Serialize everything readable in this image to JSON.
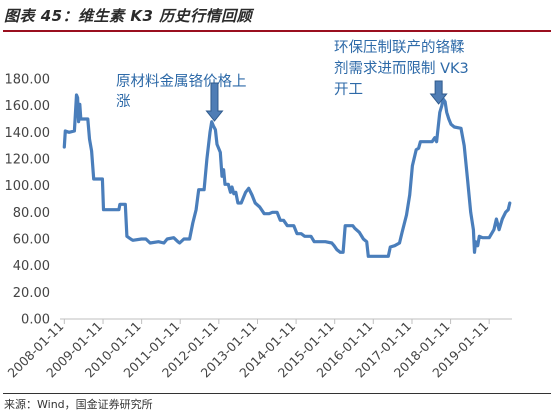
{
  "figure": {
    "title": "图表 45：维生素 K3 历史行情回顾",
    "source": "来源：Wind，国金证券研究所"
  },
  "colors": {
    "line": "#4a7ebb",
    "annotation": "#2e6aa8",
    "arrow": "#4f7db5",
    "title_rule": "#9a0f1f"
  },
  "chart_data": {
    "type": "line",
    "title": "",
    "xlabel": "",
    "ylabel": "",
    "ylim": [
      0,
      180
    ],
    "xlim": [
      "2007-12-01",
      "2019-08-15"
    ],
    "grid": false,
    "legend": "none",
    "y_ticks": [
      "0.00",
      "20.00",
      "40.00",
      "60.00",
      "80.00",
      "100.00",
      "120.00",
      "140.00",
      "160.00",
      "180.00"
    ],
    "x_ticks": [
      "2008-01-11",
      "2009-01-11",
      "2010-01-11",
      "2011-01-11",
      "2012-01-11",
      "2013-01-11",
      "2014-01-11",
      "2015-01-11",
      "2016-01-11",
      "2017-01-11",
      "2018-01-11",
      "2019-01-11"
    ],
    "series": [
      {
        "name": "",
        "points": [
          [
            "2008-01-11",
            129
          ],
          [
            "2008-01-20",
            141
          ],
          [
            "2008-02-25",
            140
          ],
          [
            "2008-04-15",
            141
          ],
          [
            "2008-05-05",
            168
          ],
          [
            "2008-05-15",
            166
          ],
          [
            "2008-05-25",
            148
          ],
          [
            "2008-06-05",
            161
          ],
          [
            "2008-06-15",
            150
          ],
          [
            "2008-08-20",
            150
          ],
          [
            "2008-09-05",
            135
          ],
          [
            "2008-09-25",
            126
          ],
          [
            "2008-10-15",
            105
          ],
          [
            "2009-01-05",
            105
          ],
          [
            "2009-01-15",
            82
          ],
          [
            "2009-06-10",
            82
          ],
          [
            "2009-06-20",
            86
          ],
          [
            "2009-08-10",
            86
          ],
          [
            "2009-08-25",
            62
          ],
          [
            "2009-09-30",
            60
          ],
          [
            "2009-10-20",
            59
          ],
          [
            "2010-01-10",
            60
          ],
          [
            "2010-02-20",
            60
          ],
          [
            "2010-04-01",
            57
          ],
          [
            "2010-06-20",
            58
          ],
          [
            "2010-08-10",
            57
          ],
          [
            "2010-09-10",
            60
          ],
          [
            "2010-11-10",
            61
          ],
          [
            "2010-12-20",
            58
          ],
          [
            "2011-01-05",
            57
          ],
          [
            "2011-02-15",
            60
          ],
          [
            "2011-04-10",
            60
          ],
          [
            "2011-05-10",
            72
          ],
          [
            "2011-06-10",
            82
          ],
          [
            "2011-07-05",
            97
          ],
          [
            "2011-08-25",
            97
          ],
          [
            "2011-09-20",
            120
          ],
          [
            "2011-10-20",
            140
          ],
          [
            "2011-11-05",
            148
          ],
          [
            "2011-11-20",
            145
          ],
          [
            "2011-12-10",
            142
          ],
          [
            "2011-12-25",
            131
          ],
          [
            "2012-01-25",
            125
          ],
          [
            "2012-02-10",
            107
          ],
          [
            "2012-02-25",
            112
          ],
          [
            "2012-03-10",
            101
          ],
          [
            "2012-04-10",
            101
          ],
          [
            "2012-05-01",
            95
          ],
          [
            "2012-05-15",
            99
          ],
          [
            "2012-06-01",
            94
          ],
          [
            "2012-06-20",
            95
          ],
          [
            "2012-07-10",
            87
          ],
          [
            "2012-08-10",
            87
          ],
          [
            "2012-09-20",
            95
          ],
          [
            "2012-10-20",
            98
          ],
          [
            "2012-11-20",
            93
          ],
          [
            "2012-12-20",
            87
          ],
          [
            "2013-02-01",
            84
          ],
          [
            "2013-03-15",
            79
          ],
          [
            "2013-05-01",
            79
          ],
          [
            "2013-06-01",
            80
          ],
          [
            "2013-07-15",
            80
          ],
          [
            "2013-08-15",
            74
          ],
          [
            "2013-09-15",
            74
          ],
          [
            "2013-10-20",
            70
          ],
          [
            "2013-12-20",
            70
          ],
          [
            "2014-01-20",
            64
          ],
          [
            "2014-03-01",
            64
          ],
          [
            "2014-04-01",
            62
          ],
          [
            "2014-06-01",
            62
          ],
          [
            "2014-07-01",
            58
          ],
          [
            "2014-10-15",
            58
          ],
          [
            "2014-12-15",
            57
          ],
          [
            "2015-01-05",
            55
          ],
          [
            "2015-02-01",
            52
          ],
          [
            "2015-03-05",
            50
          ],
          [
            "2015-04-01",
            50
          ],
          [
            "2015-04-20",
            70
          ],
          [
            "2015-07-01",
            70
          ],
          [
            "2015-07-20",
            68
          ],
          [
            "2015-09-01",
            65
          ],
          [
            "2015-10-10",
            60
          ],
          [
            "2015-11-10",
            58
          ],
          [
            "2015-11-25",
            47
          ],
          [
            "2016-06-01",
            47
          ],
          [
            "2016-06-20",
            54
          ],
          [
            "2016-08-01",
            55
          ],
          [
            "2016-09-15",
            57
          ],
          [
            "2016-10-10",
            65
          ],
          [
            "2016-11-20",
            78
          ],
          [
            "2016-12-20",
            93
          ],
          [
            "2017-01-15",
            115
          ],
          [
            "2017-02-20",
            127
          ],
          [
            "2017-03-15",
            128
          ],
          [
            "2017-04-01",
            133
          ],
          [
            "2017-07-20",
            133
          ],
          [
            "2017-08-15",
            136
          ],
          [
            "2017-09-01",
            133
          ],
          [
            "2017-10-01",
            155
          ],
          [
            "2017-10-20",
            160
          ],
          [
            "2017-11-01",
            165
          ],
          [
            "2017-11-20",
            163
          ],
          [
            "2017-12-05",
            155
          ],
          [
            "2017-12-25",
            150
          ],
          [
            "2018-01-15",
            146
          ],
          [
            "2018-02-15",
            144
          ],
          [
            "2018-04-20",
            143
          ],
          [
            "2018-05-20",
            130
          ],
          [
            "2018-06-20",
            105
          ],
          [
            "2018-07-20",
            80
          ],
          [
            "2018-08-15",
            67
          ],
          [
            "2018-08-25",
            50
          ],
          [
            "2018-09-05",
            58
          ],
          [
            "2018-09-25",
            55
          ],
          [
            "2018-10-10",
            62
          ],
          [
            "2018-11-10",
            61
          ],
          [
            "2019-01-11",
            61
          ],
          [
            "2019-02-25",
            67
          ],
          [
            "2019-03-20",
            75
          ],
          [
            "2019-04-15",
            67
          ],
          [
            "2019-05-15",
            75
          ],
          [
            "2019-06-15",
            80
          ],
          [
            "2019-07-10",
            82
          ],
          [
            "2019-07-25",
            87
          ]
        ]
      }
    ],
    "annotations": [
      {
        "lines": [
          "原材料金属铬价格上",
          "涨"
        ],
        "at": "2011-12-01"
      },
      {
        "lines": [
          "环保压制联产的铬鞣",
          "剂需求进而限制 VK3",
          "开工"
        ],
        "at": "2017-09-20"
      }
    ]
  }
}
